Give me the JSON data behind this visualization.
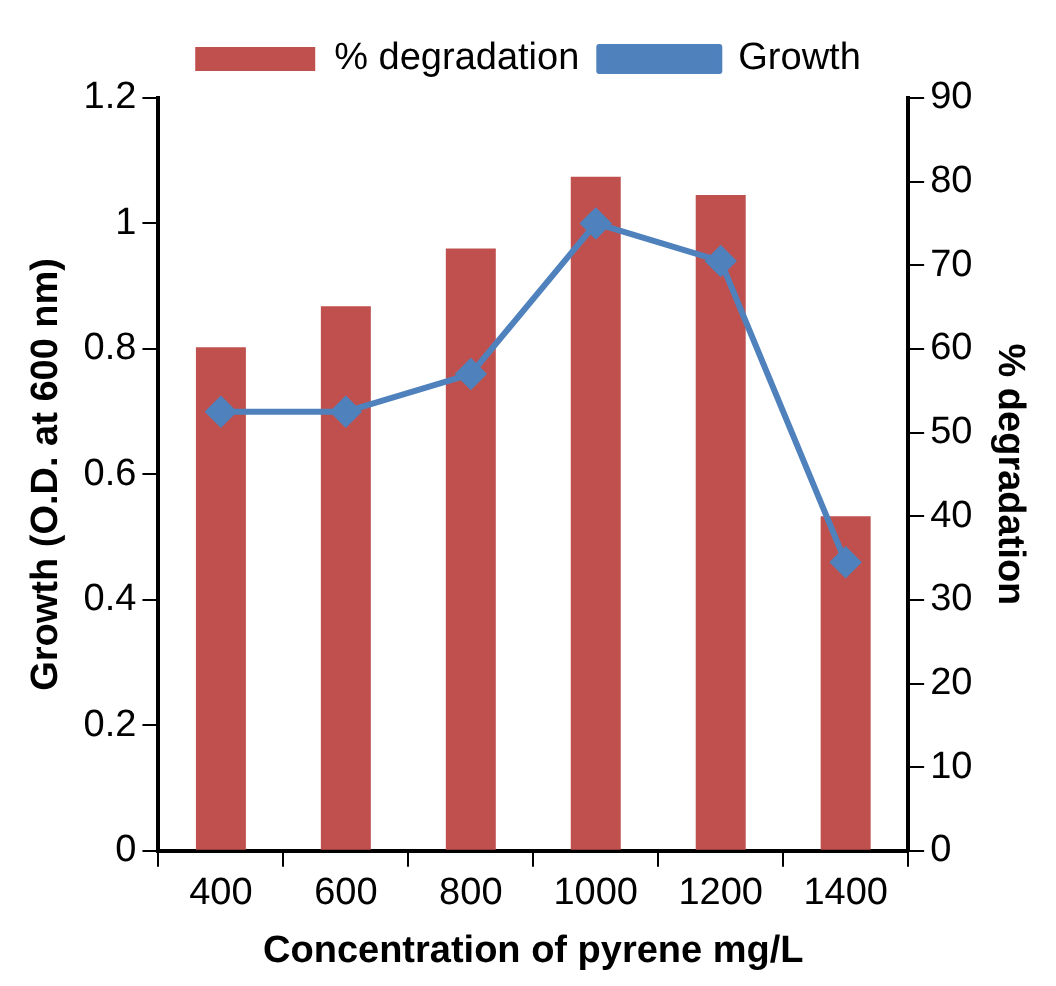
{
  "chart_data": {
    "type": "bar",
    "categories": [
      "400",
      "600",
      "800",
      "1000",
      "1200",
      "1400"
    ],
    "xlabel": "Concentration of pyrene mg/L",
    "ylabel": "Growth (O.D. at 600 nm)",
    "y2label": "% degradation",
    "series": [
      {
        "name": "% degradation",
        "axis": "y2",
        "color": "#c0504d",
        "values": [
          60.2,
          65.1,
          72,
          80.6,
          78.4,
          40
        ]
      },
      {
        "name": "Growth",
        "type": "line",
        "axis": "y",
        "color": "#4f81bd",
        "marker": "diamond",
        "values": [
          0.7,
          0.7,
          0.76,
          1.0,
          0.94,
          0.46
        ]
      }
    ],
    "ylim": [
      0,
      1.2
    ],
    "yticks": [
      0,
      0.2,
      0.4,
      0.6,
      0.8,
      1,
      1.2
    ],
    "y2lim": [
      0,
      90
    ],
    "y2ticks": [
      0,
      10,
      20,
      30,
      40,
      50,
      60,
      70,
      80,
      90
    ],
    "grid": false,
    "legend": "top"
  }
}
